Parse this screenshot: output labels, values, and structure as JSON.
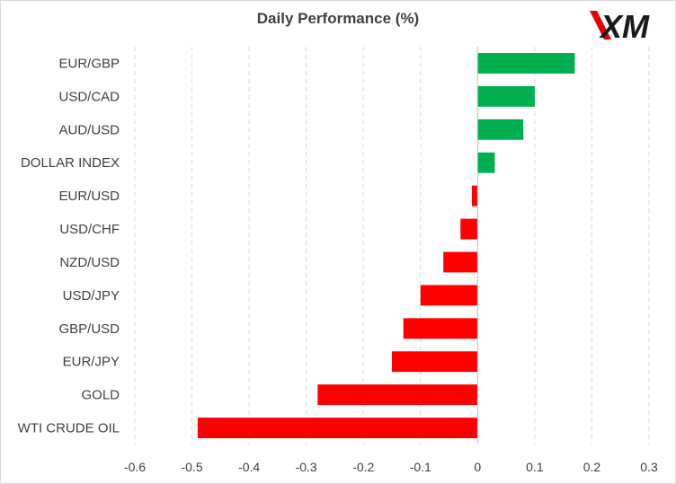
{
  "brand": {
    "logo_text": "XM",
    "accent": "#e10000"
  },
  "chart_data": {
    "type": "bar",
    "orientation": "horizontal",
    "title": "Daily Performance (%)",
    "xlabel": "",
    "ylabel": "",
    "categories": [
      "EUR/GBP",
      "USD/CAD",
      "AUD/USD",
      "DOLLAR INDEX",
      "EUR/USD",
      "USD/CHF",
      "NZD/USD",
      "USD/JPY",
      "GBP/USD",
      "EUR/JPY",
      "GOLD",
      "WTI CRUDE OIL"
    ],
    "values": [
      0.17,
      0.1,
      0.08,
      0.03,
      -0.01,
      -0.03,
      -0.06,
      -0.1,
      -0.13,
      -0.15,
      -0.28,
      -0.49
    ],
    "xlim": [
      -0.6,
      0.3
    ],
    "xticks": [
      -0.6,
      -0.5,
      -0.4,
      -0.3,
      -0.2,
      -0.1,
      0,
      0.1,
      0.2,
      0.3
    ],
    "xtick_labels": [
      "-0.6",
      "-0.5",
      "-0.4",
      "-0.3",
      "-0.2",
      "-0.1",
      "0",
      "0.1",
      "0.2",
      "0.3"
    ],
    "grid": "vertical dashed",
    "colors": {
      "positive": "#00b050",
      "negative": "#ff0000",
      "grid": "#d9d9d9",
      "axis": "#bfbfbf",
      "text": "#404040"
    }
  }
}
